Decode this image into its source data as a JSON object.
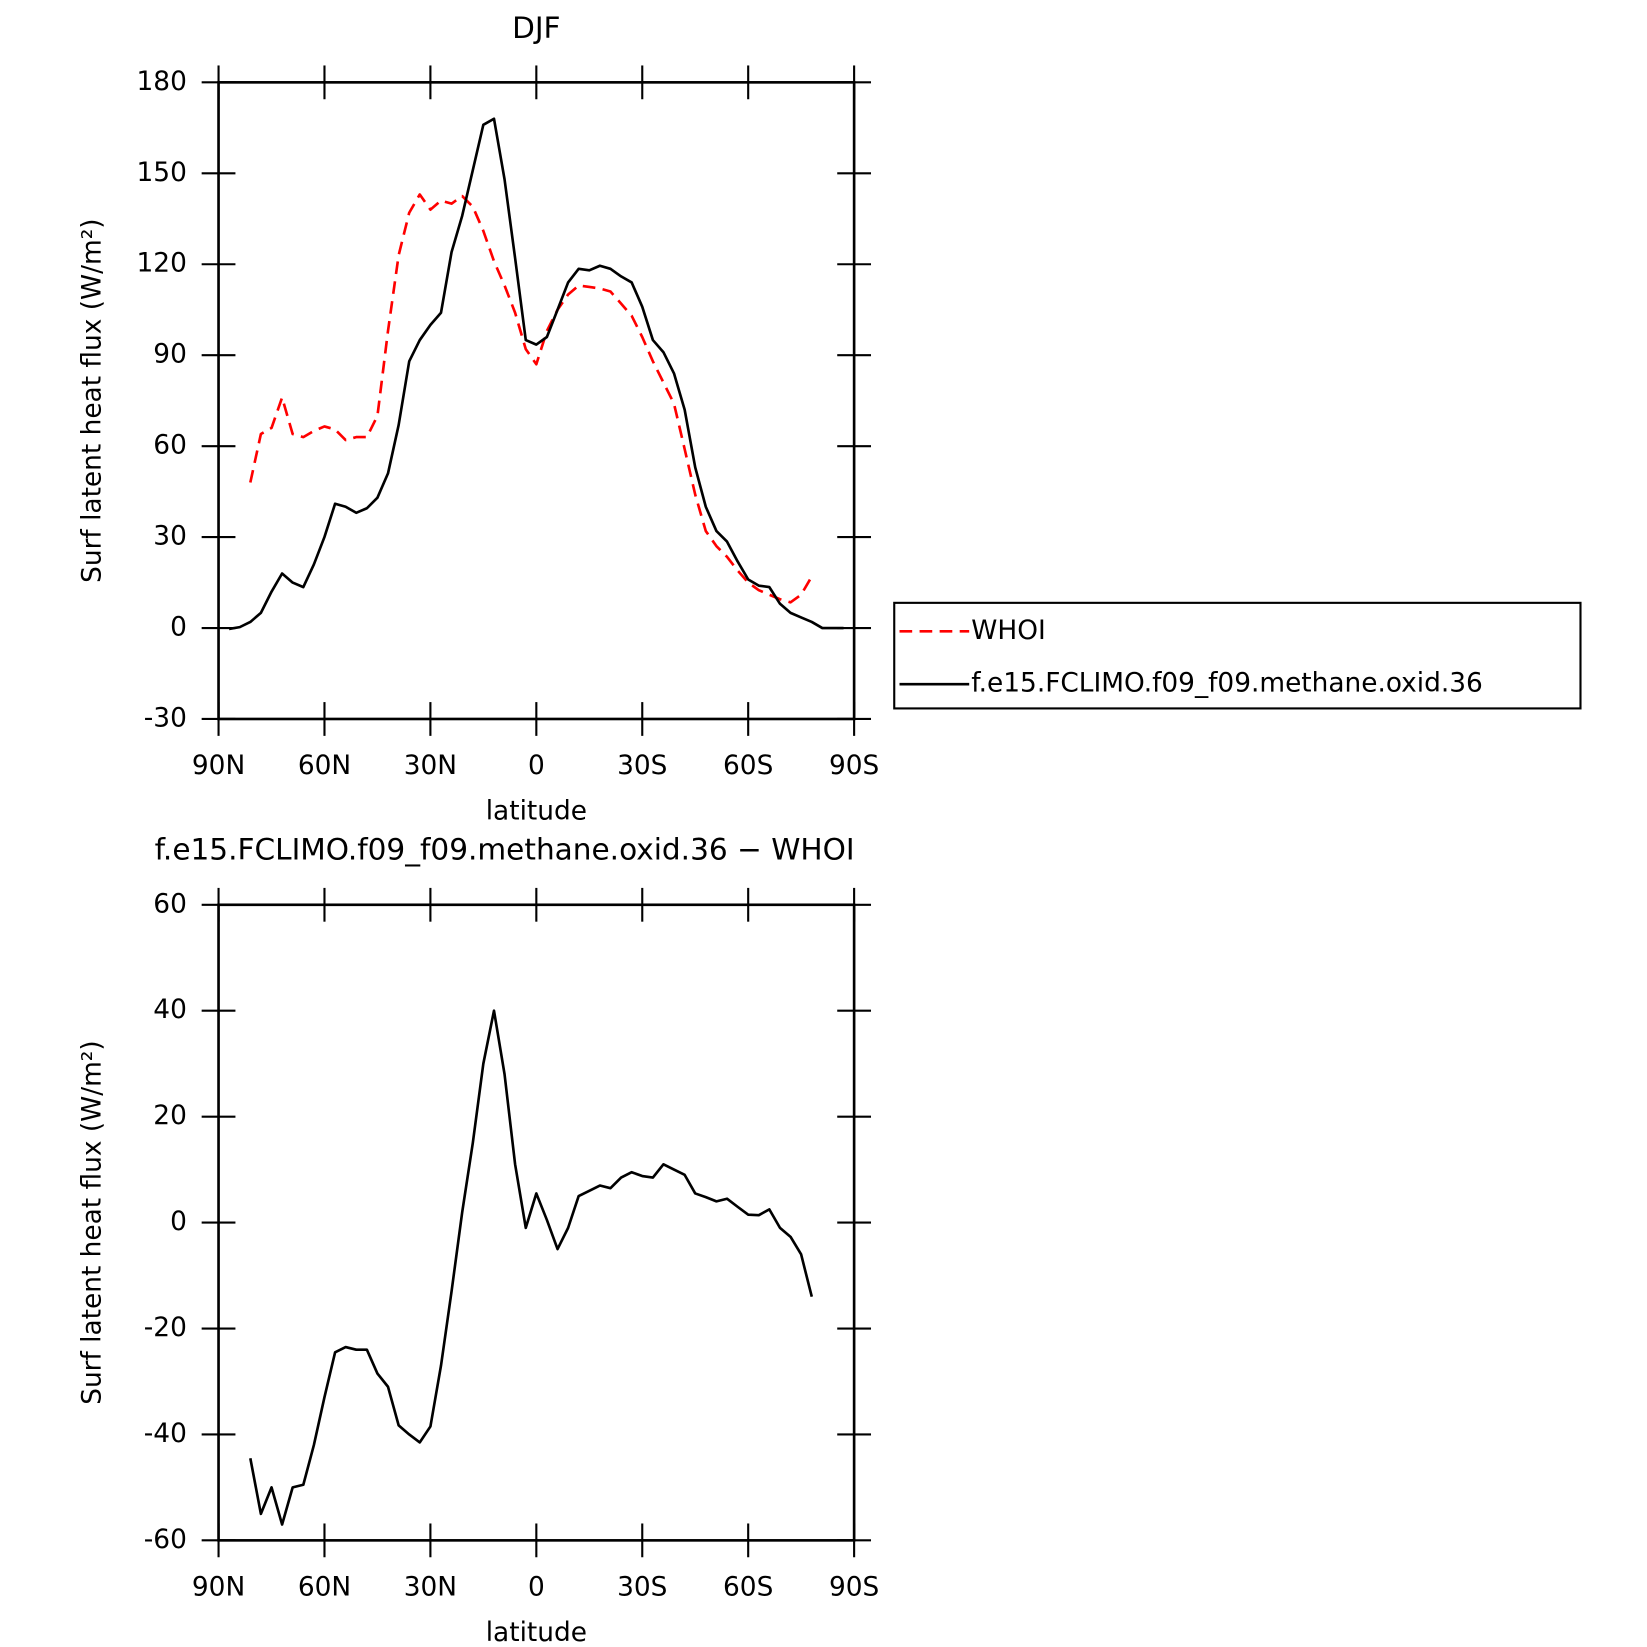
{
  "chart_data": [
    {
      "type": "line",
      "title": "DJF",
      "xlabel": "latitude",
      "ylabel": "Surf latent heat flux (W/m²)",
      "x": [
        87,
        84,
        81,
        78,
        75,
        72,
        69,
        66,
        63,
        60,
        57,
        54,
        51,
        48,
        45,
        42,
        39,
        36,
        33,
        30,
        27,
        24,
        21,
        18,
        15,
        12,
        9,
        6,
        3,
        0,
        -3,
        -6,
        -9,
        -12,
        -15,
        -18,
        -21,
        -24,
        -27,
        -30,
        -33,
        -36,
        -39,
        -42,
        -45,
        -48,
        -51,
        -54,
        -57,
        -60,
        -63,
        -66,
        -69,
        -72,
        -75,
        -78,
        -81,
        -84,
        -87
      ],
      "series": [
        {
          "name": "WHOI",
          "color": "#ff0000",
          "style": "dashed",
          "values": [
            null,
            null,
            48,
            64,
            66,
            76,
            64,
            63,
            65,
            66.5,
            65.5,
            62,
            63,
            63,
            70,
            98,
            123,
            137,
            143,
            138,
            141,
            140,
            142.5,
            139,
            131,
            121,
            113,
            104,
            92,
            87,
            98,
            105,
            110,
            113,
            112.5,
            112,
            111,
            107,
            103,
            96,
            88,
            81,
            74,
            59,
            44,
            32,
            27,
            23.5,
            19,
            15,
            12.5,
            11,
            9.5,
            8.5,
            11,
            17,
            null,
            null,
            null
          ]
        },
        {
          "name": "f.e15.FCLIMO.f09_f09.methane.oxid.36",
          "color": "#000000",
          "style": "solid",
          "values": [
            -0.3,
            0.3,
            2,
            5,
            12,
            18,
            15,
            13.5,
            21,
            30,
            41,
            40,
            38,
            39.5,
            43,
            51,
            67,
            88,
            95,
            100,
            104,
            124,
            136,
            151,
            166,
            168,
            148,
            122,
            95,
            93.5,
            96,
            105,
            114,
            118.5,
            118,
            119.5,
            118.5,
            116,
            114,
            106,
            95,
            91,
            84,
            72,
            53,
            40,
            32,
            28.5,
            22,
            16,
            14,
            13.5,
            8,
            5,
            3.5,
            2,
            0,
            0,
            0
          ]
        }
      ],
      "xlim": [
        90,
        -90
      ],
      "xticks": [
        {
          "value": 90,
          "label": "90N"
        },
        {
          "value": 60,
          "label": "60N"
        },
        {
          "value": 30,
          "label": "30N"
        },
        0,
        {
          "value": -30,
          "label": "30S"
        },
        {
          "value": -60,
          "label": "60S"
        },
        {
          "value": -90,
          "label": "90S"
        }
      ],
      "ylim": [
        -30,
        180
      ],
      "yticks": [
        -30,
        0,
        30,
        60,
        90,
        120,
        150,
        180
      ],
      "legend": "outside-right"
    },
    {
      "type": "line",
      "title": "f.e15.FCLIMO.f09_f09.methane.oxid.36 − WHOI",
      "xlabel": "latitude",
      "ylabel": "Surf latent heat flux (W/m²)",
      "x": [
        87,
        84,
        81,
        78,
        75,
        72,
        69,
        66,
        63,
        60,
        57,
        54,
        51,
        48,
        45,
        42,
        39,
        36,
        33,
        30,
        27,
        24,
        21,
        18,
        15,
        12,
        9,
        6,
        3,
        0,
        -3,
        -6,
        -9,
        -12,
        -15,
        -18,
        -21,
        -24,
        -27,
        -30,
        -33,
        -36,
        -39,
        -42,
        -45,
        -48,
        -51,
        -54,
        -57,
        -60,
        -63,
        -66,
        -69,
        -72,
        -75,
        -78,
        -81,
        -84,
        -87
      ],
      "series": [
        {
          "color": "#000000",
          "style": "solid",
          "values": [
            null,
            null,
            -44.5,
            -55,
            -50,
            -57,
            -50,
            -49.5,
            -42,
            -33,
            -24.5,
            -23.5,
            -24,
            -24,
            -28.5,
            -31,
            -38.3,
            -40,
            -41.5,
            -38.5,
            -27,
            -13,
            2,
            15,
            30,
            40,
            28,
            11,
            -1,
            5.5,
            0.5,
            -5,
            -1,
            5,
            6,
            7,
            6.5,
            8.5,
            9.5,
            8.8,
            8.5,
            11,
            10,
            9,
            5.5,
            4.8,
            4,
            4.5,
            3,
            1.5,
            1.4,
            2.5,
            -1,
            -2.7,
            -6,
            -14,
            null,
            null,
            null
          ]
        }
      ],
      "xlim": [
        90,
        -90
      ],
      "xticks": [
        {
          "value": 90,
          "label": "90N"
        },
        {
          "value": 60,
          "label": "60N"
        },
        {
          "value": 30,
          "label": "30N"
        },
        0,
        {
          "value": -30,
          "label": "30S"
        },
        {
          "value": -60,
          "label": "60S"
        },
        {
          "value": -90,
          "label": "90S"
        }
      ],
      "ylim": [
        -60,
        60
      ],
      "yticks": [
        -60,
        -40,
        -20,
        0,
        20,
        40,
        60
      ]
    }
  ]
}
